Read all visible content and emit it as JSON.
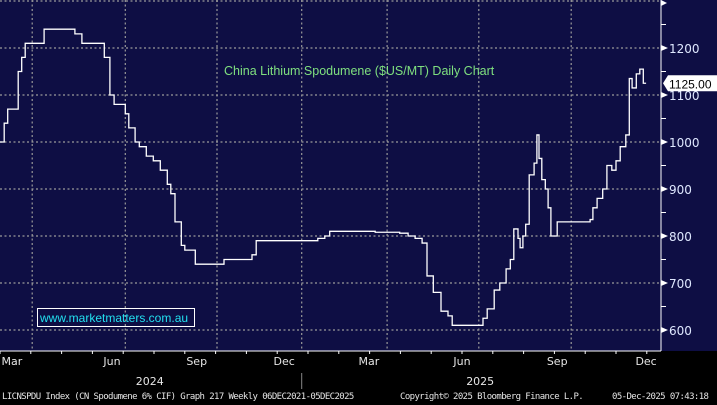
{
  "chart_data": {
    "type": "line",
    "style": "step",
    "title": "China Lithium Spodumene ($US/MT) Daily Chart",
    "watermark": "www.marketmatters.com.au",
    "ylabel": "",
    "xlabel": "",
    "ylim": [
      560,
      1280
    ],
    "yticks": [
      600,
      700,
      800,
      900,
      1000,
      1100,
      1200
    ],
    "x_unit": "weeks since late Feb 2024",
    "xlim": [
      0,
      94.6
    ],
    "month_ticks": [
      {
        "label": "Mar",
        "week": 1.7
      },
      {
        "label": "Jun",
        "week": 16
      },
      {
        "label": "Sep",
        "week": 28.1
      },
      {
        "label": "Dec",
        "week": 40.6
      },
      {
        "label": "Mar",
        "week": 52.7
      },
      {
        "label": "Jun",
        "week": 66
      },
      {
        "label": "Sep",
        "week": 79.6
      },
      {
        "label": "Dec",
        "week": 92.3
      }
    ],
    "years": [
      {
        "label": "2024",
        "week": 21.4
      },
      {
        "label": "2025",
        "week": 68.6
      }
    ],
    "year_divider_week": 43.1,
    "last_value_label": "1125.00",
    "last_value": 1125,
    "series": [
      {
        "name": "LICNSPDU Index",
        "points": [
          [
            0,
            1000
          ],
          [
            0.6,
            1040
          ],
          [
            1.1,
            1070
          ],
          [
            2.6,
            1150
          ],
          [
            3.1,
            1180
          ],
          [
            3.6,
            1210
          ],
          [
            6.3,
            1240
          ],
          [
            10.7,
            1230
          ],
          [
            11.7,
            1210
          ],
          [
            14.9,
            1180
          ],
          [
            15.7,
            1100
          ],
          [
            16.3,
            1080
          ],
          [
            17.9,
            1060
          ],
          [
            18.4,
            1030
          ],
          [
            19.3,
            1000
          ],
          [
            19.9,
            990
          ],
          [
            20.9,
            970
          ],
          [
            21.9,
            960
          ],
          [
            22.9,
            940
          ],
          [
            23.9,
            910
          ],
          [
            24.4,
            890
          ],
          [
            25,
            830
          ],
          [
            25.9,
            780
          ],
          [
            26.4,
            770
          ],
          [
            27.9,
            740
          ],
          [
            32,
            750
          ],
          [
            36,
            760
          ],
          [
            36.6,
            790
          ],
          [
            45.4,
            795
          ],
          [
            46.4,
            800
          ],
          [
            47.1,
            810
          ],
          [
            53.6,
            808
          ],
          [
            57.1,
            806
          ],
          [
            58.3,
            800
          ],
          [
            59.3,
            795
          ],
          [
            60.3,
            785
          ],
          [
            61,
            715
          ],
          [
            61.9,
            680
          ],
          [
            63,
            640
          ],
          [
            64,
            630
          ],
          [
            64.6,
            610
          ],
          [
            69,
            625
          ],
          [
            69.6,
            645
          ],
          [
            70.6,
            685
          ],
          [
            71.4,
            700
          ],
          [
            72.3,
            730
          ],
          [
            72.9,
            750
          ],
          [
            73.4,
            815
          ],
          [
            74,
            795
          ],
          [
            74.3,
            775
          ],
          [
            74.7,
            800
          ],
          [
            75.1,
            825
          ],
          [
            75.6,
            930
          ],
          [
            76.3,
            955
          ],
          [
            76.7,
            1015
          ],
          [
            77,
            965
          ],
          [
            77.4,
            920
          ],
          [
            77.9,
            900
          ],
          [
            78.3,
            860
          ],
          [
            78.7,
            800
          ],
          [
            79.6,
            830
          ],
          [
            84.3,
            835
          ],
          [
            84.7,
            860
          ],
          [
            85.3,
            880
          ],
          [
            86.1,
            900
          ],
          [
            86.7,
            950
          ],
          [
            87.4,
            940
          ],
          [
            88,
            960
          ],
          [
            88.6,
            990
          ],
          [
            89.4,
            1015
          ],
          [
            89.9,
            1135
          ],
          [
            90.3,
            1115
          ],
          [
            90.9,
            1145
          ],
          [
            91.4,
            1155
          ],
          [
            91.9,
            1125
          ]
        ],
        "end_week": 92.3
      }
    ],
    "grid": true,
    "colors": {
      "background": "#0e0e44",
      "line": "#ffffff",
      "grid": "#9a9a9a",
      "title": "#7fe07f",
      "watermark": "#22e0f0"
    }
  },
  "footer": {
    "source": "LICNSPDU Index (CN Spodumene 6% CIF) Graph 217 Weekly 06DEC2021-05DEC2025",
    "copyright": "Copyright© 2025 Bloomberg Finance L.P.",
    "timestamp": "05-Dec-2025 07:43:18"
  }
}
